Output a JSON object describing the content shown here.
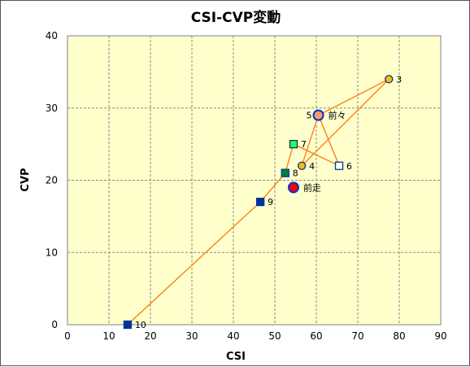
{
  "chart_data": {
    "type": "scatter",
    "title": "CSI-CVP変動",
    "xlabel": "CSI",
    "ylabel": "CVP",
    "xlim": [
      0,
      90
    ],
    "ylim": [
      0,
      40
    ],
    "xticks": [
      0,
      10,
      20,
      30,
      40,
      50,
      60,
      70,
      80,
      90
    ],
    "yticks": [
      0,
      10,
      20,
      30,
      40
    ],
    "grid": true,
    "plot_background": "#FFFFCC",
    "line_color": "#FF7F1A",
    "points": [
      {
        "label": "10",
        "x": 14.5,
        "y": 0,
        "marker": "square",
        "fill": "#003399",
        "stroke": "#003399"
      },
      {
        "label": "9",
        "x": 46.5,
        "y": 17,
        "marker": "square",
        "fill": "#003399",
        "stroke": "#003399"
      },
      {
        "label": "8",
        "x": 52.5,
        "y": 21,
        "marker": "square",
        "fill": "#008040",
        "stroke": "#003399"
      },
      {
        "label": "7",
        "x": 54.5,
        "y": 25,
        "marker": "square",
        "fill": "#33FF33",
        "stroke": "#003399"
      },
      {
        "label": "6",
        "x": 65.5,
        "y": 22,
        "marker": "square",
        "fill": "#FFFFFF",
        "stroke": "#003399"
      },
      {
        "label": "5",
        "x": 60.5,
        "y": 29,
        "marker": "circle",
        "fill": "#FFA500",
        "stroke": "#003399"
      },
      {
        "label": "4",
        "x": 56.5,
        "y": 22,
        "marker": "circle",
        "fill": "#FFC000",
        "stroke": "#003399"
      },
      {
        "label": "3",
        "x": 77.5,
        "y": 34,
        "marker": "circle",
        "fill": "#FFC000",
        "stroke": "#003399"
      },
      {
        "label": "前々",
        "x": 60.5,
        "y": 29,
        "marker": "circle",
        "fill": "#FF9966",
        "stroke": "#0033CC"
      },
      {
        "label": "前走",
        "x": 54.5,
        "y": 19,
        "marker": "circle",
        "fill": "#FF0000",
        "stroke": "#0033CC"
      }
    ],
    "path_order": [
      "10",
      "9",
      "8",
      "7",
      "6",
      "5",
      "4",
      "3",
      "前々"
    ]
  }
}
